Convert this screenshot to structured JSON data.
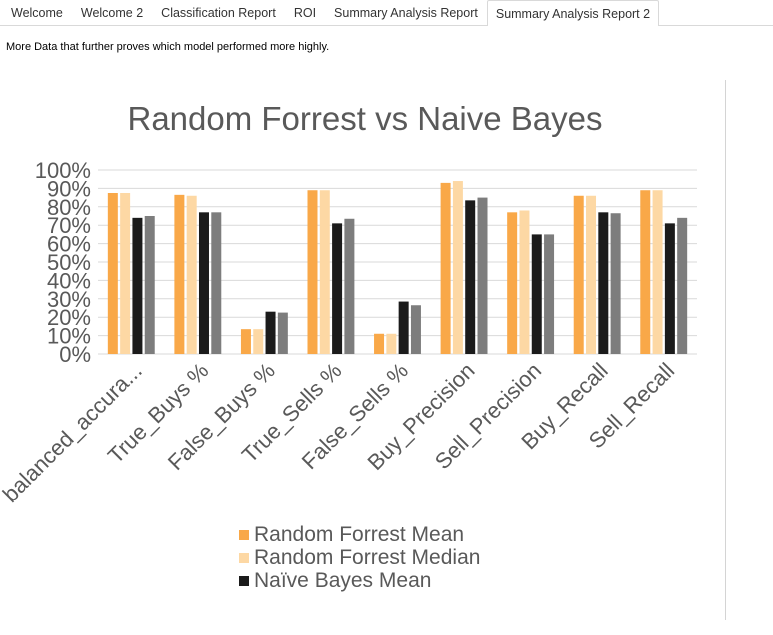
{
  "tabs": [
    {
      "label": "Welcome",
      "active": false
    },
    {
      "label": "Welcome 2",
      "active": false
    },
    {
      "label": "Classification Report",
      "active": false
    },
    {
      "label": "ROI",
      "active": false
    },
    {
      "label": "Summary Analysis Report",
      "active": false
    },
    {
      "label": "Summary Analysis Report 2",
      "active": true
    }
  ],
  "intro_text": "More Data that further proves which model performed more highly.",
  "chart_data": {
    "type": "bar",
    "title": "Random Forrest vs Naive Bayes",
    "xlabel": "",
    "ylabel": "",
    "ylim": [
      0,
      100
    ],
    "y_ticks": [
      "0%",
      "10%",
      "20%",
      "30%",
      "40%",
      "50%",
      "60%",
      "70%",
      "80%",
      "90%",
      "100%"
    ],
    "grid": true,
    "legend_position": "bottom",
    "categories": [
      "balanced_accura...",
      "True_Buys %",
      "False_Buys %",
      "True_Sells %",
      "False_Sells %",
      "Buy_Precision",
      "Sell_Precision",
      "Buy_Recall",
      "Sell_Recall"
    ],
    "series": [
      {
        "name": "Random Forrest Mean",
        "color": "#f9a848",
        "values": [
          87.5,
          86.5,
          13.5,
          89,
          11,
          93,
          77,
          86,
          89
        ],
        "in_legend": true
      },
      {
        "name": "Random Forrest Median",
        "color": "#fdd8a4",
        "values": [
          87.5,
          86,
          13.5,
          89,
          11,
          94,
          78,
          86,
          89
        ],
        "in_legend": true
      },
      {
        "name": "Naïve Bayes Mean",
        "color": "#1b1b1b",
        "values": [
          74,
          77,
          23,
          71,
          28.5,
          83.5,
          65,
          77,
          71
        ],
        "in_legend": true
      },
      {
        "name": "",
        "color": "#7d7d7d",
        "values": [
          75,
          77,
          22.5,
          73.5,
          26.5,
          85,
          65,
          76.5,
          74
        ],
        "in_legend": false
      }
    ]
  }
}
